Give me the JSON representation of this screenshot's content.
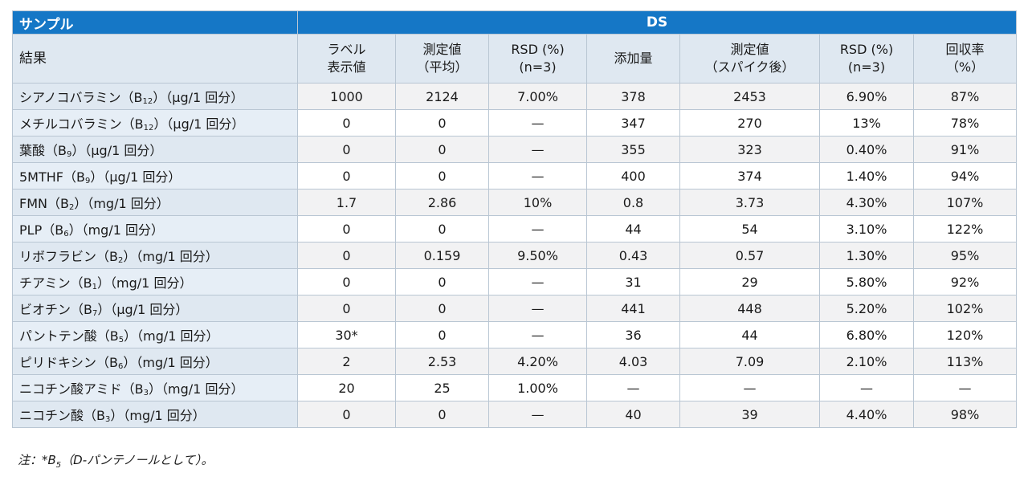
{
  "header": {
    "sample_label": "サンプル",
    "group_label": "DS",
    "result_label": "結果",
    "columns": [
      {
        "line1": "ラベル",
        "line2": "表示値"
      },
      {
        "line1": "測定値",
        "line2": "（平均）"
      },
      {
        "line1": "RSD (%)",
        "line2": "(n=3)"
      },
      {
        "line1": "添加量",
        "line2": ""
      },
      {
        "line1": "測定値",
        "line2": "（スパイク後）"
      },
      {
        "line1": "RSD (%)",
        "line2": "(n=3)"
      },
      {
        "line1": "回収率",
        "line2": "（%）"
      }
    ]
  },
  "rows": [
    {
      "name": "シアノコバラミン（B",
      "sub": "12",
      "unit": "）（µg/1 回分）",
      "values": [
        "1000",
        "2124",
        "7.00%",
        "378",
        "2453",
        "6.90%",
        "87%"
      ]
    },
    {
      "name": "メチルコバラミン（B",
      "sub": "12",
      "unit": "）（µg/1 回分）",
      "values": [
        "0",
        "0",
        "—",
        "347",
        "270",
        "13%",
        "78%"
      ]
    },
    {
      "name": "葉酸（B",
      "sub": "9",
      "unit": "）（µg/1 回分）",
      "values": [
        "0",
        "0",
        "—",
        "355",
        "323",
        "0.40%",
        "91%"
      ]
    },
    {
      "name": "5MTHF（B",
      "sub": "9",
      "unit": "）（µg/1 回分）",
      "values": [
        "0",
        "0",
        "—",
        "400",
        "374",
        "1.40%",
        "94%"
      ]
    },
    {
      "name": "FMN（B",
      "sub": "2",
      "unit": "）（mg/1 回分）",
      "values": [
        "1.7",
        "2.86",
        "10%",
        "0.8",
        "3.73",
        "4.30%",
        "107%"
      ]
    },
    {
      "name": "PLP（B",
      "sub": "6",
      "unit": "）（mg/1 回分）",
      "values": [
        "0",
        "0",
        "—",
        "44",
        "54",
        "3.10%",
        "122%"
      ]
    },
    {
      "name": "リボフラビン（B",
      "sub": "2",
      "unit": "）（mg/1 回分）",
      "values": [
        "0",
        "0.159",
        "9.50%",
        "0.43",
        "0.57",
        "1.30%",
        "95%"
      ]
    },
    {
      "name": "チアミン（B",
      "sub": "1",
      "unit": "）（mg/1 回分）",
      "values": [
        "0",
        "0",
        "—",
        "31",
        "29",
        "5.80%",
        "92%"
      ]
    },
    {
      "name": "ビオチン（B",
      "sub": "7",
      "unit": "）（µg/1 回分）",
      "values": [
        "0",
        "0",
        "—",
        "441",
        "448",
        "5.20%",
        "102%"
      ]
    },
    {
      "name": "パントテン酸（B",
      "sub": "5",
      "unit": "）（mg/1 回分）",
      "values": [
        "30*",
        "0",
        "—",
        "36",
        "44",
        "6.80%",
        "120%"
      ]
    },
    {
      "name": "ピリドキシン（B",
      "sub": "6",
      "unit": "）（mg/1 回分）",
      "values": [
        "2",
        "2.53",
        "4.20%",
        "4.03",
        "7.09",
        "2.10%",
        "113%"
      ]
    },
    {
      "name": "ニコチン酸アミド（B",
      "sub": "3",
      "unit": "）（mg/1 回分）",
      "values": [
        "20",
        "25",
        "1.00%",
        "—",
        "—",
        "—",
        "—"
      ]
    },
    {
      "name": "ニコチン酸（B",
      "sub": "3",
      "unit": "）（mg/1 回分）",
      "values": [
        "0",
        "0",
        "—",
        "40",
        "39",
        "4.40%",
        "98%"
      ]
    }
  ],
  "note": {
    "prefix": "注：*B",
    "sub": "5",
    "suffix": "（D-パンテノールとして）。"
  },
  "colors": {
    "band": "#1577c6",
    "header_bg": "#dfe8f1",
    "row_alt": "#f2f2f3",
    "border": "#b9c6d3"
  }
}
